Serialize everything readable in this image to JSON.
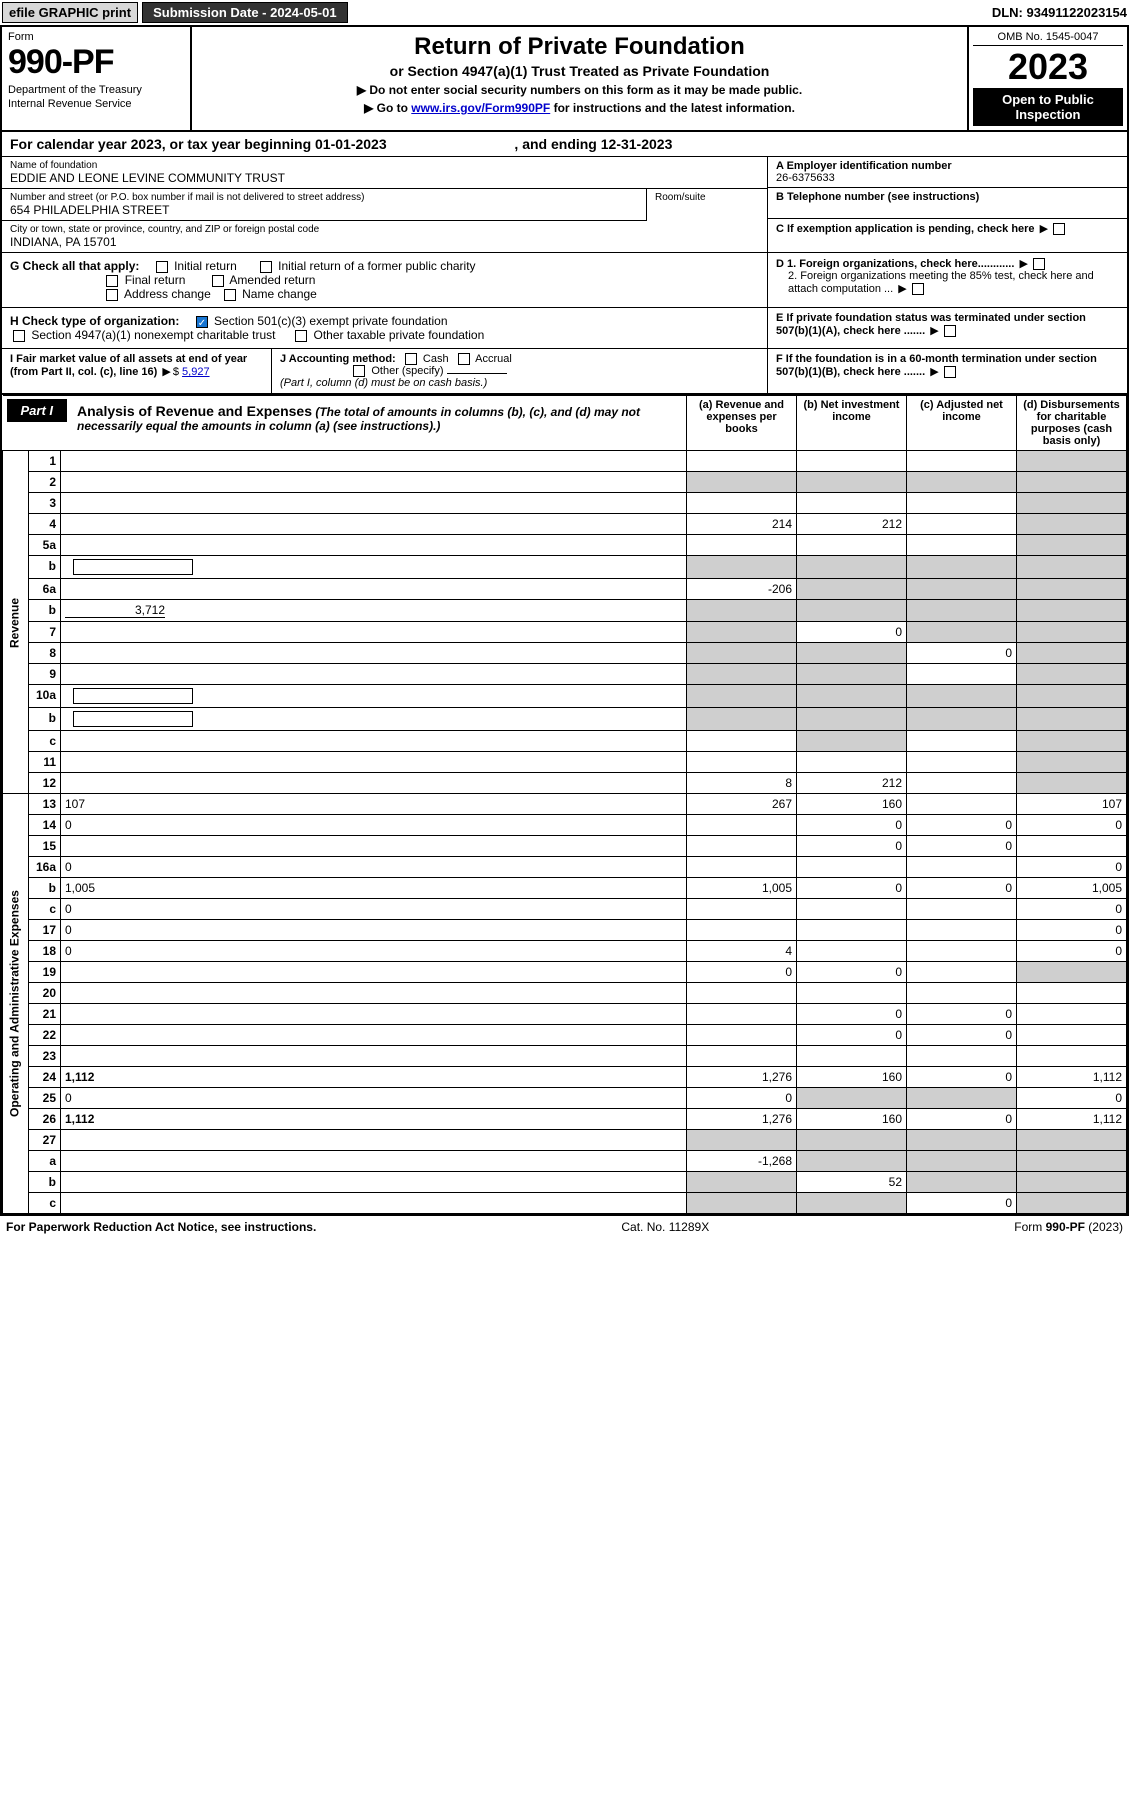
{
  "top": {
    "efile": "efile GRAPHIC print",
    "submission": "Submission Date - 2024-05-01",
    "dln": "DLN: 93491122023154"
  },
  "header": {
    "form_label": "Form",
    "form_num": "990-PF",
    "dept": "Department of the Treasury",
    "irs": "Internal Revenue Service",
    "title": "Return of Private Foundation",
    "subtitle": "or Section 4947(a)(1) Trust Treated as Private Foundation",
    "note1": "▶ Do not enter social security numbers on this form as it may be made public.",
    "note2_pre": "▶ Go to ",
    "note2_link": "www.irs.gov/Form990PF",
    "note2_post": " for instructions and the latest information.",
    "omb": "OMB No. 1545-0047",
    "year": "2023",
    "open": "Open to Public Inspection"
  },
  "cal": {
    "text_a": "For calendar year 2023, or tax year beginning 01-01-2023",
    "text_b": ", and ending 12-31-2023"
  },
  "info": {
    "name_lbl": "Name of foundation",
    "name_val": "EDDIE AND LEONE LEVINE COMMUNITY TRUST",
    "addr_lbl": "Number and street (or P.O. box number if mail is not delivered to street address)",
    "addr_val": "654 PHILADELPHIA STREET",
    "room_lbl": "Room/suite",
    "city_lbl": "City or town, state or province, country, and ZIP or foreign postal code",
    "city_val": "INDIANA, PA  15701",
    "ein_lbl": "A Employer identification number",
    "ein_val": "26-6375633",
    "tel_lbl": "B Telephone number (see instructions)",
    "c_lbl": "C If exemption application is pending, check here",
    "d1": "D 1. Foreign organizations, check here............",
    "d2": "2. Foreign organizations meeting the 85% test, check here and attach computation ...",
    "e": "E  If private foundation status was terminated under section 507(b)(1)(A), check here .......",
    "f": "F  If the foundation is in a 60-month termination under section 507(b)(1)(B), check here ......."
  },
  "g": {
    "label": "G Check all that apply:",
    "opts": [
      "Initial return",
      "Final return",
      "Address change",
      "Initial return of a former public charity",
      "Amended return",
      "Name change"
    ]
  },
  "h": {
    "label": "H Check type of organization:",
    "o1": "Section 501(c)(3) exempt private foundation",
    "o2": "Section 4947(a)(1) nonexempt charitable trust",
    "o3": "Other taxable private foundation"
  },
  "i": {
    "label": "I Fair market value of all assets at end of year (from Part II, col. (c), line 16)",
    "val": "5,927"
  },
  "j": {
    "label": "J Accounting method:",
    "o1": "Cash",
    "o2": "Accrual",
    "o3": "Other (specify)",
    "note": "(Part I, column (d) must be on cash basis.)"
  },
  "part1": {
    "tab": "Part I",
    "title": "Analysis of Revenue and Expenses",
    "sub": "(The total of amounts in columns (b), (c), and (d) may not necessarily equal the amounts in column (a) (see instructions).)",
    "cols": {
      "a": "(a)  Revenue and expenses per books",
      "b": "(b)  Net investment income",
      "c": "(c)  Adjusted net income",
      "d": "(d)  Disbursements for charitable purposes (cash basis only)"
    }
  },
  "side": {
    "rev": "Revenue",
    "exp": "Operating and Administrative Expenses"
  },
  "rows": [
    {
      "n": "1",
      "d": "",
      "a": "",
      "b": "",
      "c": "",
      "sA": false,
      "sB": false,
      "sC": false,
      "sD": true
    },
    {
      "n": "2",
      "d": "",
      "a": "",
      "b": "",
      "c": "",
      "sA": true,
      "sB": true,
      "sC": true,
      "sD": true,
      "bold_not": true
    },
    {
      "n": "3",
      "d": "",
      "a": "",
      "b": "",
      "c": "",
      "sA": false,
      "sB": false,
      "sC": false,
      "sD": true
    },
    {
      "n": "4",
      "d": "",
      "a": "214",
      "b": "212",
      "c": "",
      "sA": false,
      "sB": false,
      "sC": false,
      "sD": true
    },
    {
      "n": "5a",
      "d": "",
      "a": "",
      "b": "",
      "c": "",
      "sA": false,
      "sB": false,
      "sC": false,
      "sD": true
    },
    {
      "n": "b",
      "d": "",
      "a": "",
      "b": "",
      "c": "",
      "sA": true,
      "sB": true,
      "sC": true,
      "sD": true,
      "has_box": true
    },
    {
      "n": "6a",
      "d": "",
      "a": "-206",
      "b": "",
      "c": "",
      "sA": false,
      "sB": true,
      "sC": true,
      "sD": true
    },
    {
      "n": "b",
      "d": "",
      "a": "",
      "b": "",
      "c": "",
      "sA": true,
      "sB": true,
      "sC": true,
      "sD": true,
      "inline_val": "3,712"
    },
    {
      "n": "7",
      "d": "",
      "a": "",
      "b": "0",
      "c": "",
      "sA": true,
      "sB": false,
      "sC": true,
      "sD": true
    },
    {
      "n": "8",
      "d": "",
      "a": "",
      "b": "",
      "c": "0",
      "sA": true,
      "sB": true,
      "sC": false,
      "sD": true
    },
    {
      "n": "9",
      "d": "",
      "a": "",
      "b": "",
      "c": "",
      "sA": true,
      "sB": true,
      "sC": false,
      "sD": true
    },
    {
      "n": "10a",
      "d": "",
      "a": "",
      "b": "",
      "c": "",
      "sA": true,
      "sB": true,
      "sC": true,
      "sD": true,
      "has_box": true
    },
    {
      "n": "b",
      "d": "",
      "a": "",
      "b": "",
      "c": "",
      "sA": true,
      "sB": true,
      "sC": true,
      "sD": true,
      "has_box": true
    },
    {
      "n": "c",
      "d": "",
      "a": "",
      "b": "",
      "c": "",
      "sA": false,
      "sB": true,
      "sC": false,
      "sD": true
    },
    {
      "n": "11",
      "d": "",
      "a": "",
      "b": "",
      "c": "",
      "sA": false,
      "sB": false,
      "sC": false,
      "sD": true
    },
    {
      "n": "12",
      "d": "",
      "a": "8",
      "b": "212",
      "c": "",
      "sA": false,
      "sB": false,
      "sC": false,
      "sD": true,
      "bold": true
    },
    {
      "n": "13",
      "d": "107",
      "a": "267",
      "b": "160",
      "c": "",
      "sA": false,
      "sB": false,
      "sC": false,
      "sD": false
    },
    {
      "n": "14",
      "d": "0",
      "a": "",
      "b": "0",
      "c": "0",
      "sA": false,
      "sB": false,
      "sC": false,
      "sD": false
    },
    {
      "n": "15",
      "d": "",
      "a": "",
      "b": "0",
      "c": "0",
      "sA": false,
      "sB": false,
      "sC": false,
      "sD": false
    },
    {
      "n": "16a",
      "d": "0",
      "a": "",
      "b": "",
      "c": "",
      "sA": false,
      "sB": false,
      "sC": false,
      "sD": false
    },
    {
      "n": "b",
      "d": "1,005",
      "a": "1,005",
      "b": "0",
      "c": "0",
      "sA": false,
      "sB": false,
      "sC": false,
      "sD": false
    },
    {
      "n": "c",
      "d": "0",
      "a": "",
      "b": "",
      "c": "",
      "sA": false,
      "sB": false,
      "sC": false,
      "sD": false
    },
    {
      "n": "17",
      "d": "0",
      "a": "",
      "b": "",
      "c": "",
      "sA": false,
      "sB": false,
      "sC": false,
      "sD": false
    },
    {
      "n": "18",
      "d": "0",
      "a": "4",
      "b": "",
      "c": "",
      "sA": false,
      "sB": false,
      "sC": false,
      "sD": false
    },
    {
      "n": "19",
      "d": "",
      "a": "0",
      "b": "0",
      "c": "",
      "sA": false,
      "sB": false,
      "sC": false,
      "sD": true
    },
    {
      "n": "20",
      "d": "",
      "a": "",
      "b": "",
      "c": "",
      "sA": false,
      "sB": false,
      "sC": false,
      "sD": false
    },
    {
      "n": "21",
      "d": "",
      "a": "",
      "b": "0",
      "c": "0",
      "sA": false,
      "sB": false,
      "sC": false,
      "sD": false
    },
    {
      "n": "22",
      "d": "",
      "a": "",
      "b": "0",
      "c": "0",
      "sA": false,
      "sB": false,
      "sC": false,
      "sD": false
    },
    {
      "n": "23",
      "d": "",
      "a": "",
      "b": "",
      "c": "",
      "sA": false,
      "sB": false,
      "sC": false,
      "sD": false
    },
    {
      "n": "24",
      "d": "1,112",
      "a": "1,276",
      "b": "160",
      "c": "0",
      "sA": false,
      "sB": false,
      "sC": false,
      "sD": false,
      "bold": true
    },
    {
      "n": "25",
      "d": "0",
      "a": "0",
      "b": "",
      "c": "",
      "sA": false,
      "sB": true,
      "sC": true,
      "sD": false
    },
    {
      "n": "26",
      "d": "1,112",
      "a": "1,276",
      "b": "160",
      "c": "0",
      "sA": false,
      "sB": false,
      "sC": false,
      "sD": false,
      "bold": true
    },
    {
      "n": "27",
      "d": "",
      "a": "",
      "b": "",
      "c": "",
      "sA": true,
      "sB": true,
      "sC": true,
      "sD": true
    },
    {
      "n": "a",
      "d": "",
      "a": "-1,268",
      "b": "",
      "c": "",
      "sA": false,
      "sB": true,
      "sC": true,
      "sD": true,
      "bold": true
    },
    {
      "n": "b",
      "d": "",
      "a": "",
      "b": "52",
      "c": "",
      "sA": true,
      "sB": false,
      "sC": true,
      "sD": true,
      "bold": true
    },
    {
      "n": "c",
      "d": "",
      "a": "",
      "b": "",
      "c": "0",
      "sA": true,
      "sB": true,
      "sC": false,
      "sD": true,
      "bold": true
    }
  ],
  "footer": {
    "left": "For Paperwork Reduction Act Notice, see instructions.",
    "mid": "Cat. No. 11289X",
    "right": "Form 990-PF (2023)"
  },
  "colors": {
    "link": "#0000cc",
    "shade": "#cfcfcf",
    "chip": "#d8d8d8",
    "check": "#1976d2"
  }
}
